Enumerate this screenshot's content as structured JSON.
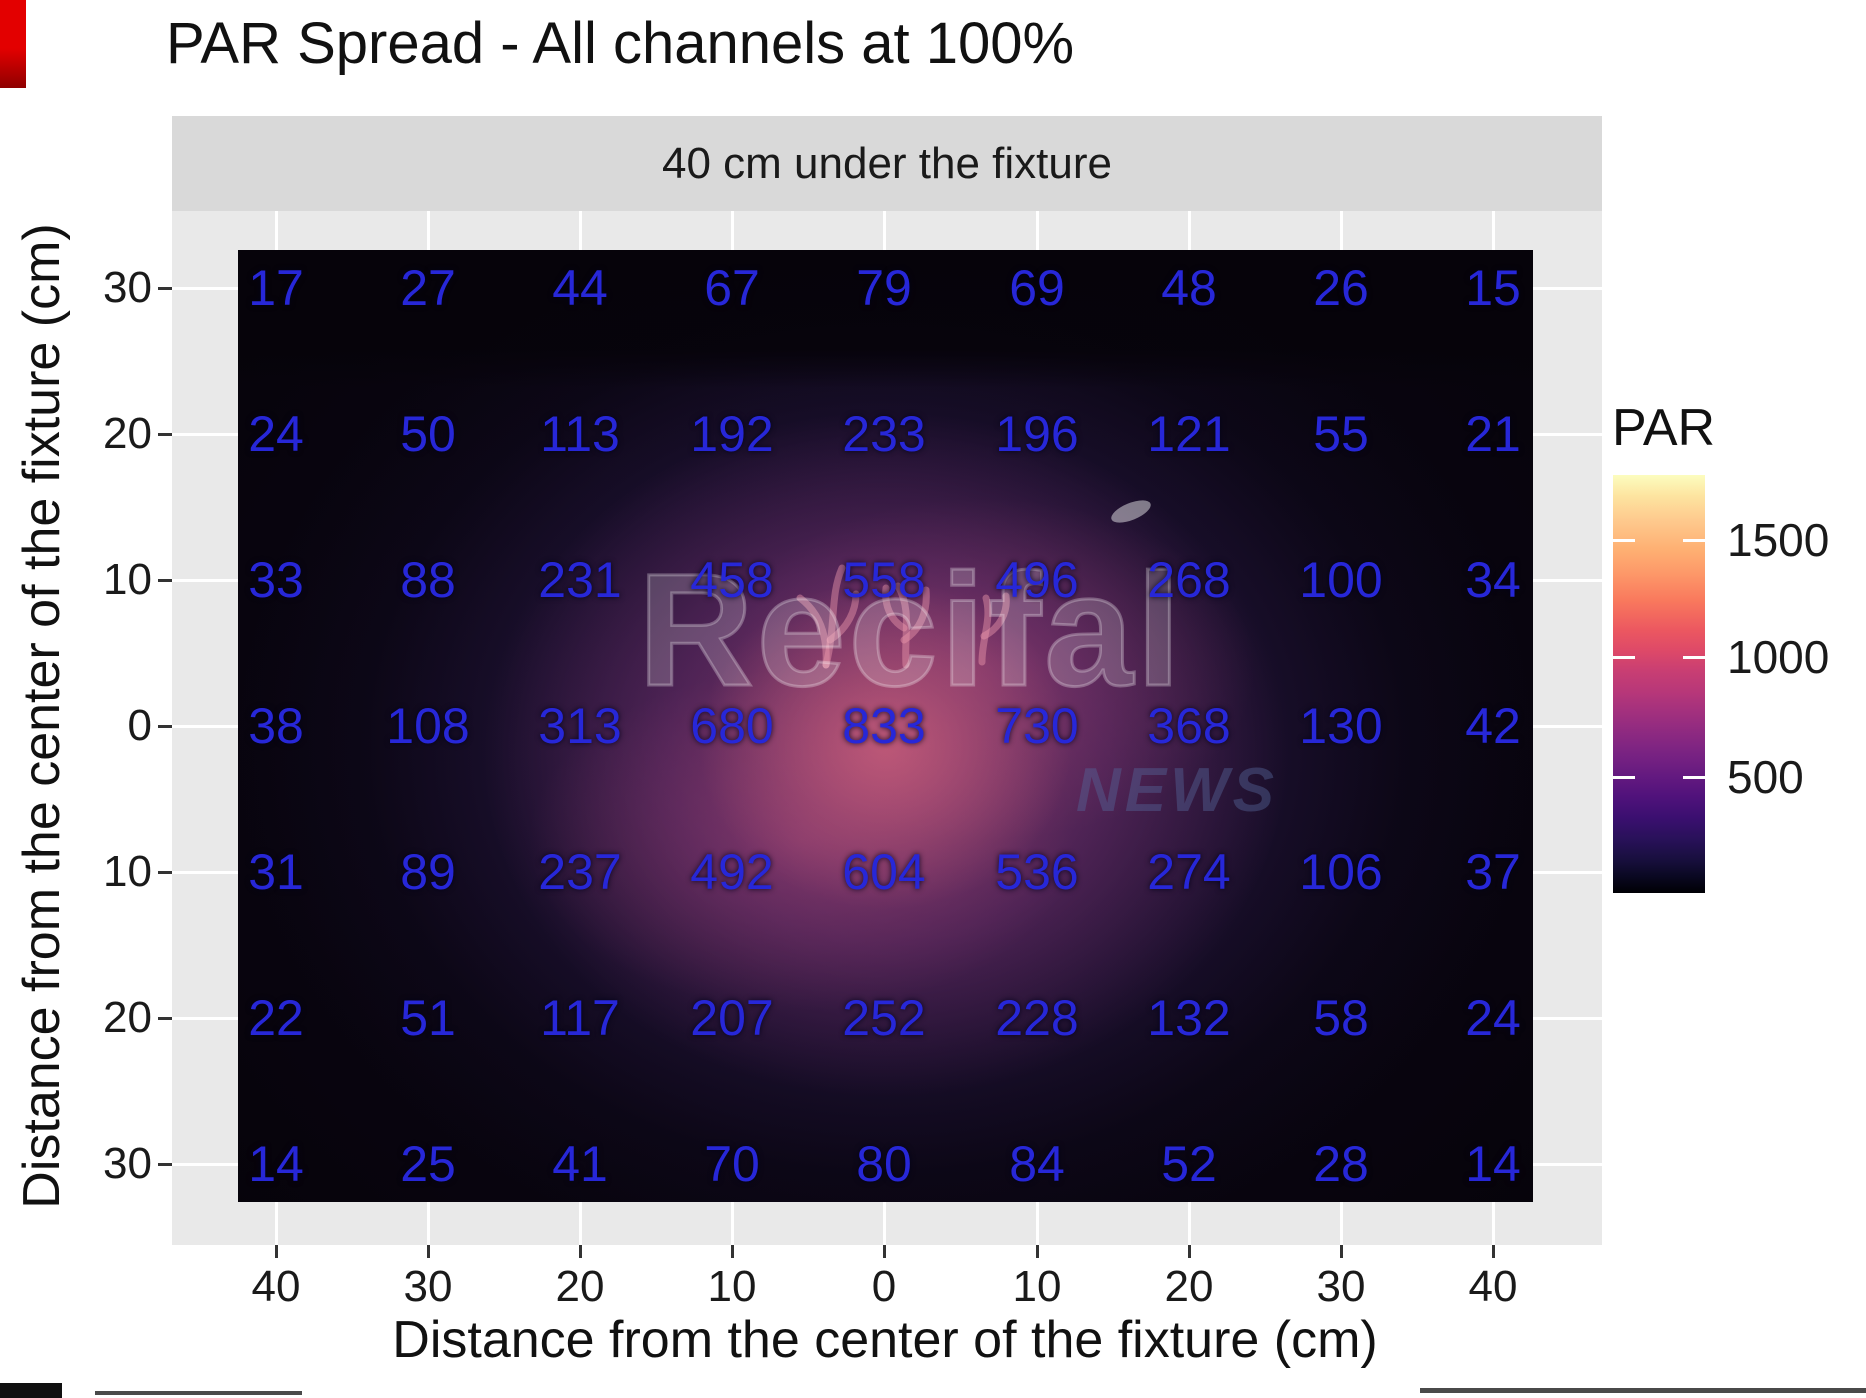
{
  "header": {
    "title": "PAR Spread - All channels at 100%"
  },
  "facet": {
    "label": "40 cm under the fixture"
  },
  "axes": {
    "x": {
      "title": "Distance from the center of the fixture (cm)",
      "ticks": [
        "40",
        "30",
        "20",
        "10",
        "0",
        "10",
        "20",
        "30",
        "40"
      ]
    },
    "y": {
      "title": "Distance from the center of the fixture (cm)",
      "ticks": [
        "30",
        "20",
        "10",
        "0",
        "10",
        "20",
        "30"
      ]
    }
  },
  "legend": {
    "title": "PAR",
    "tick_labels": [
      "1500",
      "1000",
      "500"
    ]
  },
  "watermark": {
    "brand": "Recifal",
    "suffix": "NEWS"
  },
  "chart_data": {
    "type": "heatmap",
    "title": "PAR Spread - All channels at 100%",
    "facet": "40 cm under the fixture",
    "xlabel": "Distance from the center of the fixture (cm)",
    "ylabel": "Distance from the center of the fixture (cm)",
    "x_categories": [
      40,
      30,
      20,
      10,
      0,
      10,
      20,
      30,
      40
    ],
    "y_categories": [
      30,
      20,
      10,
      0,
      10,
      20,
      30
    ],
    "unit": "cm",
    "values": [
      [
        17,
        27,
        44,
        67,
        79,
        69,
        48,
        26,
        15
      ],
      [
        24,
        50,
        113,
        192,
        233,
        196,
        121,
        55,
        21
      ],
      [
        33,
        88,
        231,
        458,
        558,
        496,
        268,
        100,
        34
      ],
      [
        38,
        108,
        313,
        680,
        833,
        730,
        368,
        130,
        42
      ],
      [
        31,
        89,
        237,
        492,
        604,
        536,
        274,
        106,
        37
      ],
      [
        22,
        51,
        117,
        207,
        252,
        228,
        132,
        58,
        24
      ],
      [
        14,
        25,
        41,
        70,
        80,
        84,
        52,
        28,
        14
      ]
    ],
    "value_label_color": "#2727d8",
    "legend": {
      "title": "PAR",
      "ticks": [
        1500,
        1000,
        500
      ],
      "scale_range": [
        0,
        1780
      ],
      "colormap": "magma",
      "position": "right"
    },
    "grid": "on",
    "panel_background": "#e9e9e9",
    "strip_background": "#d9d9d9"
  }
}
